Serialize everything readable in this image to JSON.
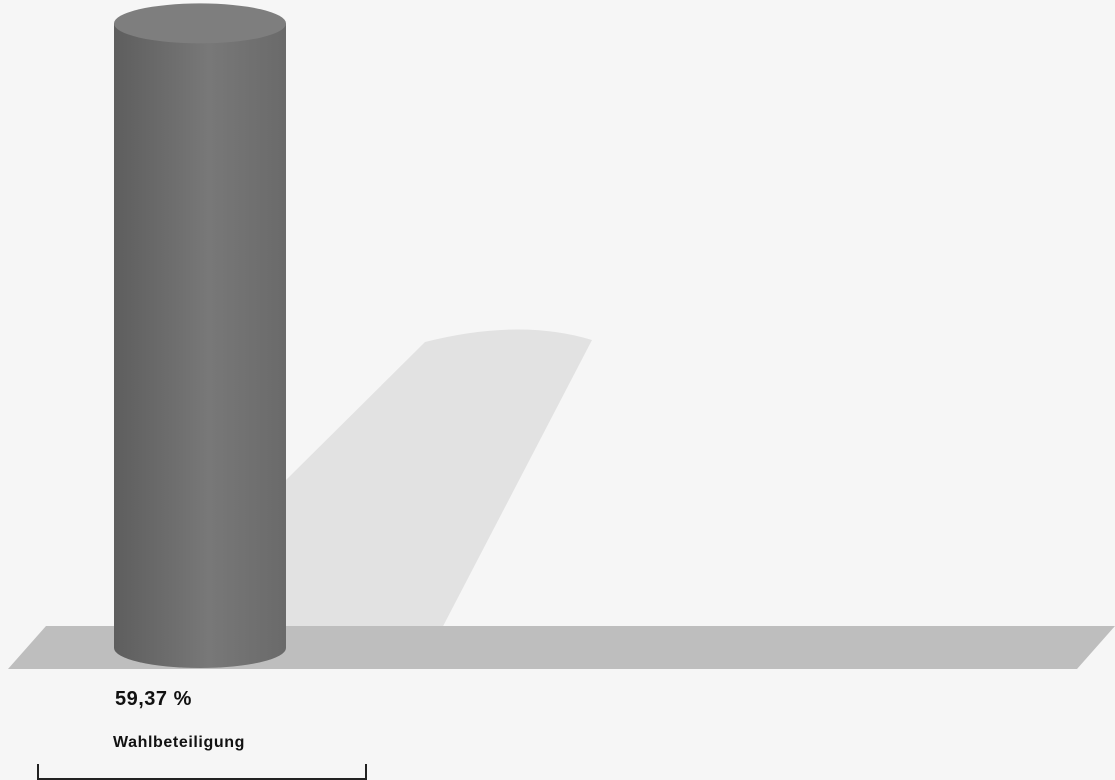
{
  "chart_data": {
    "type": "bar",
    "categories": [
      "Wahlbeteiligung"
    ],
    "values": [
      59.37
    ],
    "value_labels": [
      "59,37 %"
    ],
    "ylim": [
      0,
      100
    ],
    "title": "",
    "xlabel": "",
    "ylabel": "",
    "grid": false,
    "colors": {
      "background": "#f6f6f6",
      "bar": "#6c6c6c",
      "bar_top": "#7e7e7e",
      "floor": "#bebebe",
      "shadow": "#e2e2e2",
      "axis": "#222222"
    }
  }
}
